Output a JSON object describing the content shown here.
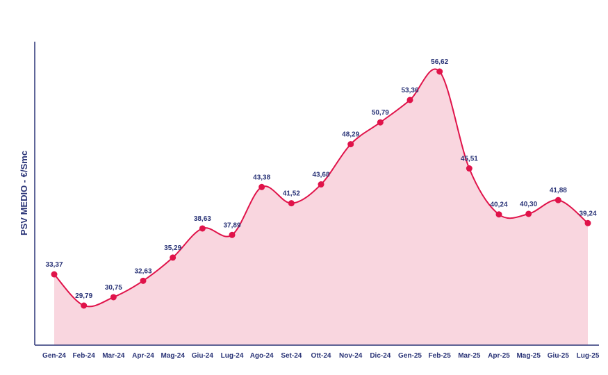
{
  "chart_data": {
    "type": "area",
    "title": "",
    "xlabel": "",
    "ylabel": "PSV MEDIO - €/Smc",
    "categories": [
      "Gen-24",
      "Feb-24",
      "Mar-24",
      "Apr-24",
      "Mag-24",
      "Giu-24",
      "Lug-24",
      "Ago-24",
      "Set-24",
      "Ott-24",
      "Nov-24",
      "Dic-24",
      "Gen-25",
      "Feb-25",
      "Mar-25",
      "Apr-25",
      "Mag-25",
      "Giu-25",
      "Lug-25"
    ],
    "values": [
      33.37,
      29.79,
      30.75,
      32.63,
      35.29,
      38.63,
      37.89,
      43.38,
      41.52,
      43.68,
      48.29,
      50.79,
      53.36,
      56.62,
      45.51,
      40.24,
      40.3,
      41.88,
      39.24
    ],
    "value_labels": [
      "33,37",
      "29,79",
      "30,75",
      "32,63",
      "35,29",
      "38,63",
      "37,89",
      "43,38",
      "41,52",
      "43,68",
      "48,29",
      "50,79",
      "53,36",
      "56,62",
      "45,51",
      "40,24",
      "40,30",
      "41,88",
      "39,24"
    ],
    "grid": false,
    "legend": "none",
    "colors": {
      "line": "#e0134a",
      "area": "#f9d6df",
      "axis": "#2a3477",
      "text": "#2a3477"
    }
  }
}
